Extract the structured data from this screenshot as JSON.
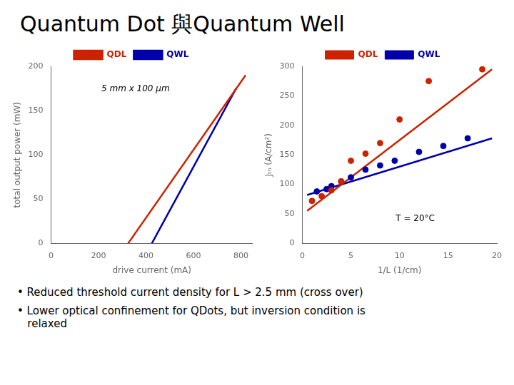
{
  "title": "Quantum Dot 與Quantum Well",
  "annotations": [
    "• Reduced threshold current density for L > 2.5 mm (cross over)",
    "• Lower optical confinement for QDots, but inversion condition is\n   relaxed"
  ],
  "chart_data": [
    {
      "type": "line",
      "annotations": [
        "5 mm x 100 μm"
      ],
      "xlabel": "drive current (mA)",
      "ylabel": "total output power (mW)",
      "xlim": [
        0,
        850
      ],
      "ylim": [
        0,
        200
      ],
      "xticks": [
        0,
        200,
        400,
        600,
        800
      ],
      "yticks": [
        0,
        50,
        100,
        150,
        200
      ],
      "grid": false,
      "legend": "top",
      "series": [
        {
          "name": "QDL",
          "color": "#cc2200",
          "x": [
            325,
            820
          ],
          "values": [
            0,
            190
          ]
        },
        {
          "name": "QWL",
          "color": "#0000aa",
          "x": [
            425,
            780
          ],
          "values": [
            0,
            175
          ]
        }
      ]
    },
    {
      "type": "scatter",
      "annotations": [
        "T = 20°C"
      ],
      "xlabel": "1/L (1/cm)",
      "ylabel": "Jₜₕ (A/cm²)",
      "xlim": [
        0,
        20
      ],
      "ylim": [
        0,
        300
      ],
      "xticks": [
        0,
        5,
        10,
        15,
        20
      ],
      "yticks": [
        0,
        50,
        100,
        150,
        200,
        250,
        300
      ],
      "grid": false,
      "legend": "top",
      "series": [
        {
          "name": "QDL",
          "type": "scatter",
          "color": "#cc2200",
          "x": [
            1.0,
            2.0,
            3.0,
            4.0,
            5.0,
            6.5,
            8.0,
            10.0,
            13.0,
            18.5
          ],
          "values": [
            72,
            80,
            90,
            105,
            140,
            152,
            170,
            210,
            275,
            295
          ]
        },
        {
          "name": "QWL",
          "type": "scatter",
          "color": "#0000aa",
          "x": [
            1.5,
            2.5,
            3.0,
            4.0,
            5.0,
            6.5,
            8.0,
            9.5,
            12.0,
            14.5,
            17.0
          ],
          "values": [
            88,
            92,
            97,
            105,
            112,
            125,
            132,
            140,
            155,
            165,
            178
          ]
        },
        {
          "type": "line",
          "color": "#cc2200",
          "x": [
            0.5,
            19.5
          ],
          "values": [
            55,
            295
          ]
        },
        {
          "type": "line",
          "color": "#0000aa",
          "x": [
            0.5,
            19.5
          ],
          "values": [
            82,
            178
          ]
        }
      ]
    }
  ]
}
